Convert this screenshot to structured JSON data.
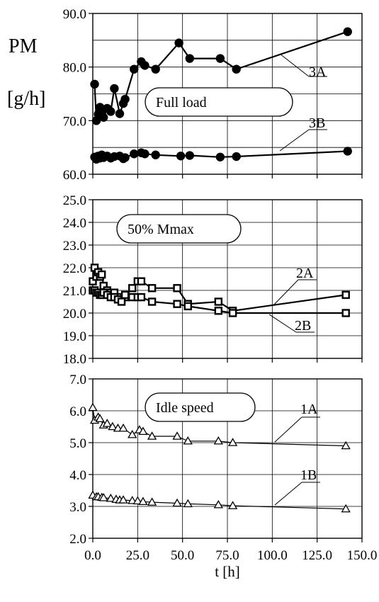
{
  "y_label_quantity": "PM",
  "y_label_unit": "[g/h]",
  "chart_data": [
    {
      "type": "line",
      "title": "",
      "xlabel": "t [h]",
      "ylabel": "PM [g/h]",
      "xlim": [
        0,
        150
      ],
      "ylim": [
        60,
        90
      ],
      "yticks": [
        "60.0",
        "70.0",
        "80.0",
        "90.0"
      ],
      "grid": true,
      "annotation": "Full load",
      "marker": "circle",
      "series": [
        {
          "name": "3A",
          "x": [
            1,
            2,
            3,
            4,
            5,
            6,
            8,
            10,
            12,
            15,
            17,
            18,
            23,
            27,
            29,
            35,
            48,
            54,
            71,
            80,
            142
          ],
          "y": [
            76.8,
            70.0,
            71.2,
            72.5,
            71.5,
            70.6,
            72.3,
            71.7,
            76.0,
            71.3,
            73.2,
            74.0,
            79.6,
            81.0,
            80.3,
            79.6,
            84.5,
            81.6,
            81.6,
            79.6,
            86.6
          ]
        },
        {
          "name": "3B",
          "x": [
            1,
            2,
            3,
            4,
            5,
            6,
            8,
            10,
            12,
            15,
            17,
            18,
            23,
            27,
            29,
            35,
            49,
            54,
            71,
            80,
            142
          ],
          "y": [
            63.2,
            62.8,
            63.4,
            63.0,
            63.6,
            63.1,
            63.4,
            63.0,
            63.3,
            63.4,
            62.9,
            63.1,
            63.8,
            64.0,
            63.8,
            63.6,
            63.4,
            63.5,
            63.2,
            63.3,
            64.3
          ]
        }
      ],
      "labels": [
        "3A",
        "3B"
      ]
    },
    {
      "type": "line",
      "title": "",
      "xlabel": "t [h]",
      "ylabel": "PM [g/h]",
      "xlim": [
        0,
        150
      ],
      "ylim": [
        18,
        25
      ],
      "yticks": [
        "18.0",
        "19.0",
        "20.0",
        "21.0",
        "22.0",
        "23.0",
        "24.0",
        "25.0"
      ],
      "grid": true,
      "annotation": "50% Mmax",
      "marker": "square",
      "series": [
        {
          "name": "2A",
          "x": [
            0,
            1,
            2,
            3,
            4,
            5,
            6,
            8,
            10,
            12,
            14,
            16,
            18,
            22,
            25,
            27,
            33,
            47,
            53,
            70,
            78,
            141
          ],
          "y": [
            21.4,
            22.0,
            21.6,
            21.8,
            21.6,
            21.7,
            21.2,
            21.0,
            20.9,
            20.9,
            20.7,
            20.6,
            20.7,
            21.1,
            21.4,
            21.4,
            21.1,
            21.1,
            20.4,
            20.5,
            20.1,
            20.8
          ]
        },
        {
          "name": "2B",
          "x": [
            0,
            1,
            2,
            3,
            4,
            5,
            6,
            8,
            10,
            12,
            14,
            16,
            18,
            22,
            25,
            27,
            33,
            47,
            53,
            70,
            78,
            141
          ],
          "y": [
            21.0,
            21.0,
            20.9,
            20.9,
            20.8,
            20.8,
            20.9,
            20.8,
            20.7,
            20.7,
            20.6,
            20.5,
            20.8,
            20.7,
            20.7,
            20.7,
            20.5,
            20.4,
            20.3,
            20.1,
            20.0,
            20.0
          ]
        }
      ],
      "labels": [
        "2A",
        "2B"
      ]
    },
    {
      "type": "line",
      "title": "",
      "xlabel": "t [h]",
      "ylabel": "PM [g/h]",
      "xlim": [
        0,
        150
      ],
      "xticks": [
        "0.0",
        "25.0",
        "50.0",
        "75.0",
        "100.0",
        "125.0",
        "150.0"
      ],
      "ylim": [
        2,
        7
      ],
      "yticks": [
        "2.0",
        "3.0",
        "4.0",
        "5.0",
        "6.0",
        "7.0"
      ],
      "grid": true,
      "annotation": "Idle speed",
      "marker": "triangle",
      "series": [
        {
          "name": "1A",
          "x": [
            0,
            1,
            3,
            4,
            6,
            8,
            11,
            14,
            17,
            22,
            26,
            28,
            33,
            47,
            53,
            70,
            78,
            141
          ],
          "y": [
            6.1,
            5.7,
            5.8,
            5.75,
            5.55,
            5.6,
            5.5,
            5.45,
            5.45,
            5.25,
            5.4,
            5.35,
            5.2,
            5.2,
            5.05,
            5.05,
            5.0,
            4.9
          ]
        },
        {
          "name": "1B",
          "x": [
            0,
            2,
            3,
            5,
            6,
            10,
            13,
            15,
            17,
            22,
            25,
            28,
            33,
            47,
            53,
            70,
            78,
            141
          ],
          "y": [
            3.35,
            3.3,
            3.3,
            3.28,
            3.27,
            3.25,
            3.22,
            3.2,
            3.2,
            3.18,
            3.17,
            3.15,
            3.13,
            3.1,
            3.08,
            3.05,
            3.02,
            2.92
          ]
        }
      ],
      "labels": [
        "1A",
        "1B"
      ]
    }
  ]
}
